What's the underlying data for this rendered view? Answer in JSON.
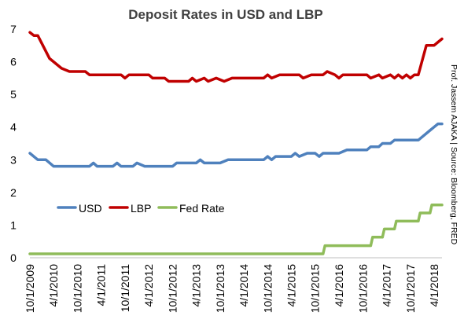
{
  "chart_data": {
    "type": "line",
    "title": "Deposit Rates in USD and LBP",
    "source_note": "Prof. Jassem AJAKA | Source: Bloomberg, FRED",
    "ylim": [
      0,
      7
    ],
    "y_ticks": [
      0,
      1,
      2,
      3,
      4,
      5,
      6,
      7
    ],
    "x_range": [
      "2009-10-01",
      "2018-06-01"
    ],
    "x_tick_labels": [
      "10/1/2009",
      "4/1/2010",
      "10/1/2010",
      "4/1/2011",
      "10/1/2011",
      "4/1/2012",
      "10/1/2012",
      "4/1/2013",
      "10/1/2013",
      "4/1/2014",
      "10/1/2014",
      "4/1/2015",
      "10/1/2015",
      "4/1/2016",
      "10/1/2016",
      "4/1/2017",
      "10/1/2017",
      "4/1/2018"
    ],
    "x_tick_dates": [
      "2009-10-01",
      "2010-04-01",
      "2010-10-01",
      "2011-04-01",
      "2011-10-01",
      "2012-04-01",
      "2012-10-01",
      "2013-04-01",
      "2013-10-01",
      "2014-04-01",
      "2014-10-01",
      "2015-04-01",
      "2015-10-01",
      "2016-04-01",
      "2016-10-01",
      "2017-04-01",
      "2017-10-01",
      "2018-04-01"
    ],
    "grid": false,
    "legend_position": "center-left",
    "series": [
      {
        "name": "USD",
        "color": "#4f81bd",
        "points": [
          [
            "2009-10-01",
            3.2
          ],
          [
            "2009-12-01",
            3.0
          ],
          [
            "2010-02-01",
            3.0
          ],
          [
            "2010-04-01",
            2.8
          ],
          [
            "2010-10-01",
            2.8
          ],
          [
            "2011-01-01",
            2.8
          ],
          [
            "2011-02-01",
            2.9
          ],
          [
            "2011-03-01",
            2.8
          ],
          [
            "2011-07-01",
            2.8
          ],
          [
            "2011-08-01",
            2.9
          ],
          [
            "2011-09-01",
            2.8
          ],
          [
            "2011-12-01",
            2.8
          ],
          [
            "2012-01-01",
            2.9
          ],
          [
            "2012-03-01",
            2.8
          ],
          [
            "2012-10-01",
            2.8
          ],
          [
            "2012-11-01",
            2.9
          ],
          [
            "2013-04-01",
            2.9
          ],
          [
            "2013-05-01",
            3.0
          ],
          [
            "2013-06-01",
            2.9
          ],
          [
            "2013-10-01",
            2.9
          ],
          [
            "2013-12-01",
            3.0
          ],
          [
            "2014-09-01",
            3.0
          ],
          [
            "2014-10-01",
            3.1
          ],
          [
            "2014-11-01",
            3.0
          ],
          [
            "2014-12-01",
            3.1
          ],
          [
            "2015-04-01",
            3.1
          ],
          [
            "2015-05-01",
            3.2
          ],
          [
            "2015-06-01",
            3.1
          ],
          [
            "2015-08-01",
            3.2
          ],
          [
            "2015-10-01",
            3.2
          ],
          [
            "2015-11-01",
            3.1
          ],
          [
            "2015-12-01",
            3.2
          ],
          [
            "2016-04-01",
            3.2
          ],
          [
            "2016-06-01",
            3.3
          ],
          [
            "2016-11-01",
            3.3
          ],
          [
            "2016-12-01",
            3.4
          ],
          [
            "2017-02-01",
            3.4
          ],
          [
            "2017-03-01",
            3.5
          ],
          [
            "2017-05-01",
            3.5
          ],
          [
            "2017-06-01",
            3.6
          ],
          [
            "2017-12-01",
            3.6
          ],
          [
            "2018-03-01",
            3.9
          ],
          [
            "2018-04-01",
            4.0
          ],
          [
            "2018-05-01",
            4.1
          ],
          [
            "2018-06-01",
            4.1
          ]
        ]
      },
      {
        "name": "LBP",
        "color": "#c00000",
        "points": [
          [
            "2009-10-01",
            6.9
          ],
          [
            "2009-11-01",
            6.8
          ],
          [
            "2009-12-01",
            6.8
          ],
          [
            "2010-03-01",
            6.1
          ],
          [
            "2010-06-01",
            5.8
          ],
          [
            "2010-08-01",
            5.7
          ],
          [
            "2010-12-01",
            5.7
          ],
          [
            "2011-01-01",
            5.6
          ],
          [
            "2011-09-01",
            5.6
          ],
          [
            "2011-10-01",
            5.5
          ],
          [
            "2011-11-01",
            5.6
          ],
          [
            "2012-04-01",
            5.6
          ],
          [
            "2012-05-01",
            5.5
          ],
          [
            "2012-08-01",
            5.5
          ],
          [
            "2012-09-01",
            5.4
          ],
          [
            "2013-02-01",
            5.4
          ],
          [
            "2013-03-01",
            5.5
          ],
          [
            "2013-04-01",
            5.4
          ],
          [
            "2013-06-01",
            5.5
          ],
          [
            "2013-07-01",
            5.4
          ],
          [
            "2013-09-01",
            5.5
          ],
          [
            "2013-11-01",
            5.4
          ],
          [
            "2014-01-01",
            5.5
          ],
          [
            "2014-09-01",
            5.5
          ],
          [
            "2014-10-01",
            5.6
          ],
          [
            "2014-11-01",
            5.5
          ],
          [
            "2015-01-01",
            5.6
          ],
          [
            "2015-06-01",
            5.6
          ],
          [
            "2015-07-01",
            5.5
          ],
          [
            "2015-09-01",
            5.6
          ],
          [
            "2015-12-01",
            5.6
          ],
          [
            "2016-01-01",
            5.7
          ],
          [
            "2016-03-01",
            5.6
          ],
          [
            "2016-04-01",
            5.5
          ],
          [
            "2016-05-01",
            5.6
          ],
          [
            "2016-11-01",
            5.6
          ],
          [
            "2016-12-01",
            5.5
          ],
          [
            "2017-02-01",
            5.6
          ],
          [
            "2017-03-01",
            5.5
          ],
          [
            "2017-05-01",
            5.6
          ],
          [
            "2017-06-01",
            5.5
          ],
          [
            "2017-07-01",
            5.6
          ],
          [
            "2017-08-01",
            5.5
          ],
          [
            "2017-09-01",
            5.6
          ],
          [
            "2017-10-01",
            5.5
          ],
          [
            "2017-11-01",
            5.6
          ],
          [
            "2017-12-01",
            5.6
          ],
          [
            "2018-02-01",
            6.5
          ],
          [
            "2018-04-01",
            6.5
          ],
          [
            "2018-05-01",
            6.6
          ],
          [
            "2018-06-01",
            6.7
          ]
        ]
      },
      {
        "name": "Fed Rate",
        "color": "#8fbc5a",
        "points": [
          [
            "2009-10-01",
            0.12
          ],
          [
            "2015-12-01",
            0.12
          ],
          [
            "2015-12-15",
            0.37
          ],
          [
            "2016-12-01",
            0.37
          ],
          [
            "2016-12-15",
            0.63
          ],
          [
            "2017-03-01",
            0.63
          ],
          [
            "2017-03-15",
            0.88
          ],
          [
            "2017-06-01",
            0.88
          ],
          [
            "2017-06-15",
            1.12
          ],
          [
            "2017-12-01",
            1.12
          ],
          [
            "2017-12-15",
            1.37
          ],
          [
            "2018-03-01",
            1.37
          ],
          [
            "2018-03-15",
            1.62
          ],
          [
            "2018-06-01",
            1.62
          ]
        ]
      }
    ]
  }
}
